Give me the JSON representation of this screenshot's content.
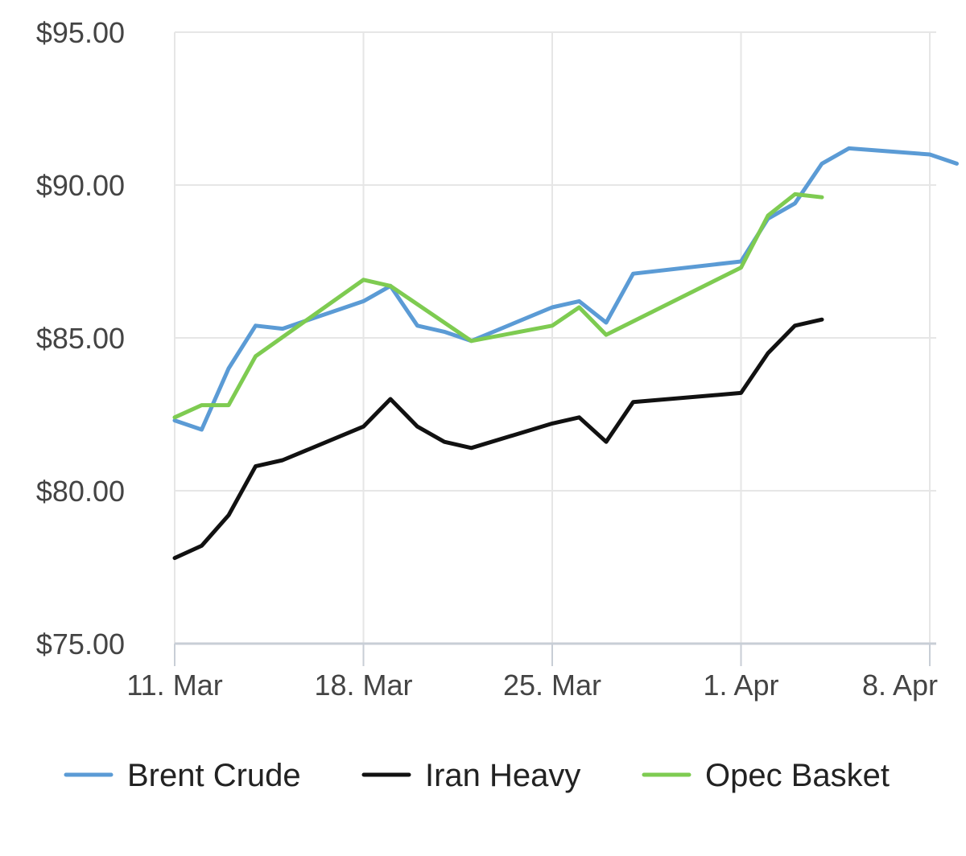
{
  "chart_data": {
    "type": "line",
    "title": "",
    "xlabel": "",
    "ylabel": "",
    "x_ticks": [
      {
        "date": "2024-03-11",
        "label": "11. Mar"
      },
      {
        "date": "2024-03-18",
        "label": "18. Mar"
      },
      {
        "date": "2024-03-25",
        "label": "25. Mar"
      },
      {
        "date": "2024-04-01",
        "label": "1. Apr"
      },
      {
        "date": "2024-04-08",
        "label": "8. Apr"
      }
    ],
    "xlim": [
      "2024-03-11",
      "2024-04-08"
    ],
    "ylim": [
      75,
      95
    ],
    "y_ticks": [
      {
        "value": 75,
        "label": "$75.00"
      },
      {
        "value": 80,
        "label": "$80.00"
      },
      {
        "value": 85,
        "label": "$85.00"
      },
      {
        "value": 90,
        "label": "$90.00"
      },
      {
        "value": 95,
        "label": "$95.00"
      }
    ],
    "grid": true,
    "legend_position": "bottom",
    "series": [
      {
        "name": "Brent Crude",
        "color": "#5b9bd5",
        "points": [
          [
            "2024-03-11",
            82.3
          ],
          [
            "2024-03-12",
            82.0
          ],
          [
            "2024-03-13",
            84.0
          ],
          [
            "2024-03-14",
            85.4
          ],
          [
            "2024-03-15",
            85.3
          ],
          [
            "2024-03-18",
            86.2
          ],
          [
            "2024-03-19",
            86.7
          ],
          [
            "2024-03-20",
            85.4
          ],
          [
            "2024-03-21",
            85.2
          ],
          [
            "2024-03-22",
            84.9
          ],
          [
            "2024-03-25",
            86.0
          ],
          [
            "2024-03-26",
            86.2
          ],
          [
            "2024-03-27",
            85.5
          ],
          [
            "2024-03-28",
            87.1
          ],
          [
            "2024-04-01",
            87.5
          ],
          [
            "2024-04-02",
            88.9
          ],
          [
            "2024-04-03",
            89.4
          ],
          [
            "2024-04-04",
            90.7
          ],
          [
            "2024-04-05",
            91.2
          ],
          [
            "2024-04-08",
            91.0
          ],
          [
            "2024-04-09",
            90.7
          ]
        ]
      },
      {
        "name": "Iran Heavy",
        "color": "#111111",
        "points": [
          [
            "2024-03-11",
            77.8
          ],
          [
            "2024-03-12",
            78.2
          ],
          [
            "2024-03-13",
            79.2
          ],
          [
            "2024-03-14",
            80.8
          ],
          [
            "2024-03-15",
            81.0
          ],
          [
            "2024-03-18",
            82.1
          ],
          [
            "2024-03-19",
            83.0
          ],
          [
            "2024-03-20",
            82.1
          ],
          [
            "2024-03-21",
            81.6
          ],
          [
            "2024-03-22",
            81.4
          ],
          [
            "2024-03-25",
            82.2
          ],
          [
            "2024-03-26",
            82.4
          ],
          [
            "2024-03-27",
            81.6
          ],
          [
            "2024-03-28",
            82.9
          ],
          [
            "2024-04-01",
            83.2
          ],
          [
            "2024-04-02",
            84.5
          ],
          [
            "2024-04-03",
            85.4
          ],
          [
            "2024-04-04",
            85.6
          ]
        ]
      },
      {
        "name": "Opec Basket",
        "color": "#7ecb51",
        "points": [
          [
            "2024-03-11",
            82.4
          ],
          [
            "2024-03-12",
            82.8
          ],
          [
            "2024-03-13",
            82.8
          ],
          [
            "2024-03-14",
            84.4
          ],
          [
            "2024-03-18",
            86.9
          ],
          [
            "2024-03-19",
            86.7
          ],
          [
            "2024-03-22",
            84.9
          ],
          [
            "2024-03-25",
            85.4
          ],
          [
            "2024-03-26",
            86.0
          ],
          [
            "2024-03-27",
            85.1
          ],
          [
            "2024-04-01",
            87.3
          ],
          [
            "2024-04-02",
            89.0
          ],
          [
            "2024-04-03",
            89.7
          ],
          [
            "2024-04-04",
            89.6
          ]
        ]
      }
    ]
  }
}
